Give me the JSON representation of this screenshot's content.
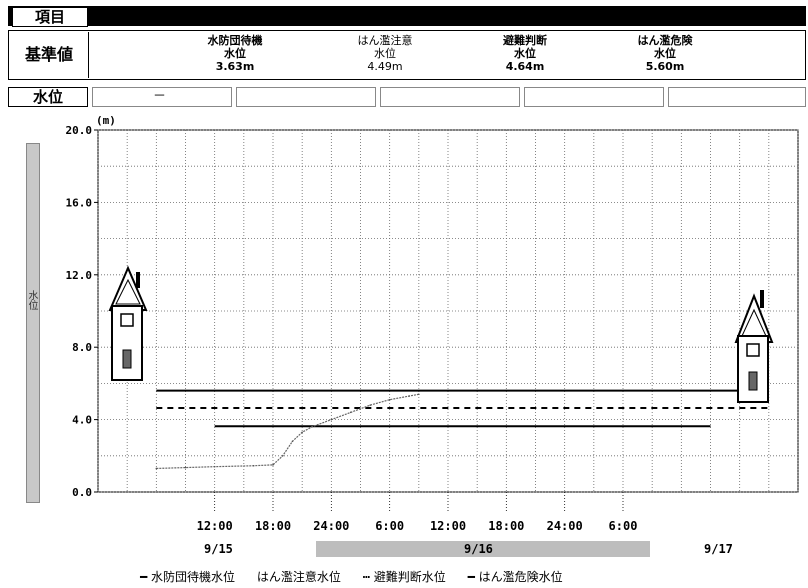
{
  "header": {
    "label": "項目"
  },
  "standard": {
    "label": "基準値",
    "columns": [
      {
        "name": "水防団待機",
        "unit": "水位",
        "value": "3.63m"
      },
      {
        "name": "はん濫注意",
        "unit": "水位",
        "value": "4.49m"
      },
      {
        "name": "避難判断",
        "unit": "水位",
        "value": "4.64m"
      },
      {
        "name": "はん濫危険",
        "unit": "水位",
        "value": "5.60m"
      }
    ]
  },
  "water_level": {
    "label": "水位",
    "current": "－"
  },
  "yaxis_side_label": "水位",
  "chart_data": {
    "type": "line",
    "unit": "(m)",
    "ylim": [
      0,
      20
    ],
    "y_ticks": [
      "20.0",
      "16.0",
      "12.0",
      "8.0",
      "4.0",
      "0.0"
    ],
    "x_tick_labels": [
      "12:00",
      "18:00",
      "24:00",
      "6:00",
      "12:00",
      "18:00",
      "24:00",
      "6:00"
    ],
    "dates": [
      {
        "label": "9/15",
        "highlight": false
      },
      {
        "label": "9/16",
        "highlight": true
      },
      {
        "label": "9/17",
        "highlight": false
      }
    ],
    "x_hours": [
      -12,
      60
    ],
    "grid": true,
    "threshold_lines": [
      {
        "name": "水防団待機水位",
        "value": 3.63,
        "style": "solid",
        "x_range": [
          0,
          51
        ]
      },
      {
        "name": "避難判断水位",
        "value": 4.64,
        "style": "dashed",
        "x_range": [
          -6,
          57
        ]
      },
      {
        "name": "はん濫危険水位",
        "value": 5.6,
        "style": "solid",
        "x_range": [
          -6,
          57
        ]
      }
    ],
    "observed": {
      "x": [
        -6,
        -3,
        0,
        4,
        6,
        7,
        8,
        9,
        10,
        12,
        14,
        16,
        18,
        20,
        21
      ],
      "y": [
        1.3,
        1.35,
        1.4,
        1.45,
        1.5,
        2.0,
        2.8,
        3.3,
        3.6,
        4.0,
        4.4,
        4.8,
        5.1,
        5.3,
        5.4
      ]
    },
    "legend": [
      "水防団待機水位",
      "はん濫注意水位",
      "避難判断水位",
      "はん濫危険水位"
    ]
  }
}
